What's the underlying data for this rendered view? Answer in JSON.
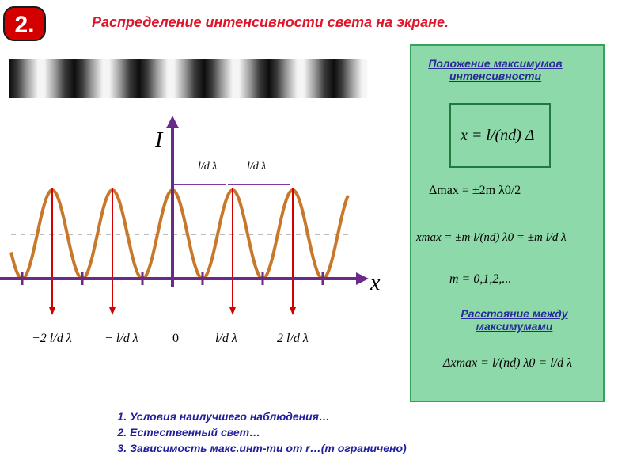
{
  "badge": "2.",
  "title": "Распределение интенсивности света на экране.",
  "graph": {
    "y_axis_label": "I",
    "x_axis_label": "x",
    "spacing_label": "l/d λ",
    "tick_labels": [
      "−2 l/d λ",
      "− l/d λ",
      "0",
      "l/d λ",
      "2 l/d λ"
    ]
  },
  "panel": {
    "heading_max": "Положение максимумов интенсивности",
    "heading_dist": "Расстояние между максимумами",
    "formula_main": "x = l/(nd) Δ",
    "formula_delta": "Δmax = ±2m λ0/2",
    "formula_xmax": "xmax = ±m l/(nd) λ0 = ±m l/d λ",
    "formula_m": "m = 0,1,2,...",
    "formula_dx": "Δxmax = l/(nd) λ0 = l/d λ"
  },
  "list": [
    "Условия наилучшего наблюдения…",
    "Естественный свет…",
    "Зависимость макс.инт-ти от r…(m ограничено)"
  ],
  "colors": {
    "curve": "#c8782a",
    "axis": "#6a2a8a",
    "markers": "#d40000",
    "panel": "#8dd9a9"
  }
}
